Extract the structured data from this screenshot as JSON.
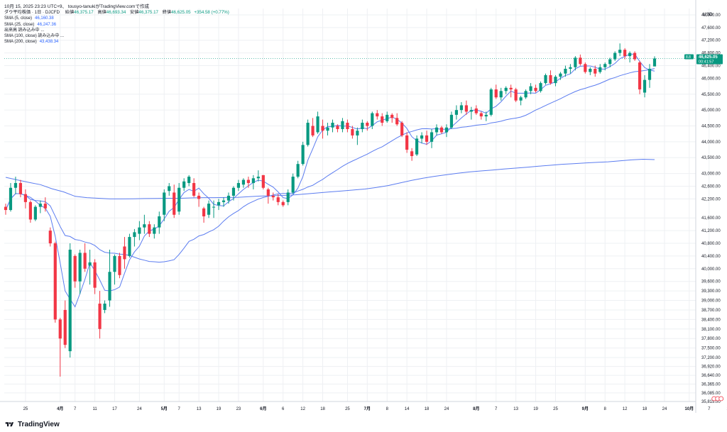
{
  "header": {
    "published": "10月 15, 2025 23:23 UTC+9、 tousyo-tanukiがTradingView.comで作成",
    "symbol_line": "ダウ平均株価 · 1日 · DJCFD",
    "ohlc": {
      "open_label": "始値",
      "open": "46,375.17",
      "high_label": "高値",
      "high": "46,693.34",
      "low_label": "安値",
      "low": "46,375.17",
      "close_label": "終値",
      "close": "46,625.05",
      "change": "+354.58 (+0.77%)"
    }
  },
  "indicators": [
    {
      "label": "SMA (5, close)",
      "value": "46,160.38",
      "color": "#2962ff"
    },
    {
      "label": "SMA (25, close)",
      "value": "46,247.36",
      "color": "#2962ff"
    },
    {
      "label": "出来高 読み込み中 ...",
      "value": "",
      "color": "#131722"
    },
    {
      "label": "SMA (100, close) 読み込み中 ...",
      "value": "",
      "color": "#131722"
    },
    {
      "label": "SMA (200, close)",
      "value": "43,438.34",
      "color": "#2962ff"
    }
  ],
  "colors": {
    "up": "#089981",
    "down": "#f23645",
    "sma": "#5b7cf0",
    "grid": "#eef0f3",
    "axis_text": "#131722",
    "last_price_bg": "#089981"
  },
  "footer": {
    "brand": "TradingView"
  },
  "chart_data": {
    "type": "candlestick",
    "title": "ダウ平均株価 · 1日 · DJCFD",
    "currency": "USD",
    "ylim": [
      35815,
      48200
    ],
    "y_ticks": [
      48000,
      47600,
      47200,
      46800,
      46400,
      46000,
      45500,
      45000,
      44500,
      44000,
      43500,
      43000,
      42600,
      42200,
      41600,
      41200,
      40800,
      40400,
      40000,
      39600,
      39300,
      39000,
      38700,
      38400,
      38100,
      37800,
      37500,
      37200,
      36920,
      36640,
      36365,
      36085,
      35815
    ],
    "y_tick_labels": [
      "48,000.00",
      "47,600.00",
      "47,200.00",
      "46,800.00",
      "46,400.00",
      "46,000.00",
      "45,500.00",
      "45,000.00",
      "44,500.00",
      "44,000.00",
      "43,500.00",
      "43,000.00",
      "42,600.00",
      "42,200.00",
      "41,600.00",
      "41,200.00",
      "40,800.00",
      "40,400.00",
      "40,000.00",
      "39,600.00",
      "39,300.00",
      "39,000.00",
      "38,700.00",
      "38,400.00",
      "38,100.00",
      "37,800.00",
      "37,500.00",
      "37,200.00",
      "36,920.00",
      "36,640.00",
      "36,365.00",
      "36,085.00",
      "35,815.00"
    ],
    "x_ticks": [
      {
        "label": "25",
        "idx": 4
      },
      {
        "label": "4月",
        "idx": 11,
        "bold": true
      },
      {
        "label": "7",
        "idx": 14
      },
      {
        "label": "11",
        "idx": 18
      },
      {
        "label": "17",
        "idx": 22
      },
      {
        "label": "24",
        "idx": 27
      },
      {
        "label": "5月",
        "idx": 32,
        "bold": true
      },
      {
        "label": "7",
        "idx": 35
      },
      {
        "label": "13",
        "idx": 39
      },
      {
        "label": "19",
        "idx": 43
      },
      {
        "label": "23",
        "idx": 47
      },
      {
        "label": "6月",
        "idx": 52,
        "bold": true
      },
      {
        "label": "6",
        "idx": 56
      },
      {
        "label": "12",
        "idx": 60
      },
      {
        "label": "18",
        "idx": 64
      },
      {
        "label": "25",
        "idx": 69
      },
      {
        "label": "7月",
        "idx": 73,
        "bold": true
      },
      {
        "label": "8",
        "idx": 77
      },
      {
        "label": "14",
        "idx": 81
      },
      {
        "label": "18",
        "idx": 85
      },
      {
        "label": "24",
        "idx": 89
      },
      {
        "label": "8月",
        "idx": 95,
        "bold": true
      },
      {
        "label": "7",
        "idx": 99
      },
      {
        "label": "13",
        "idx": 103
      },
      {
        "label": "19",
        "idx": 107
      },
      {
        "label": "25",
        "idx": 111
      },
      {
        "label": "9月",
        "idx": 117,
        "bold": true
      },
      {
        "label": "8",
        "idx": 121
      },
      {
        "label": "12",
        "idx": 125
      },
      {
        "label": "18",
        "idx": 129
      },
      {
        "label": "24",
        "idx": 133
      },
      {
        "label": "10月",
        "idx": 138,
        "bold": true
      },
      {
        "label": "7",
        "idx": 142
      },
      {
        "label": "13",
        "idx": 146
      },
      {
        "label": "17",
        "idx": 150
      },
      {
        "label": "23",
        "idx": 155
      }
    ],
    "candles": [
      [
        41950,
        42050,
        41700,
        41850
      ],
      [
        41850,
        42700,
        41800,
        42550
      ],
      [
        42550,
        42900,
        42350,
        42700
      ],
      [
        42700,
        42800,
        42250,
        42350
      ],
      [
        42350,
        42500,
        41900,
        42100
      ],
      [
        42100,
        42150,
        41450,
        41550
      ],
      [
        41550,
        42000,
        41500,
        41950
      ],
      [
        41950,
        42150,
        41750,
        42050
      ],
      [
        42050,
        42250,
        41800,
        41900
      ],
      [
        41200,
        41300,
        40700,
        40800
      ],
      [
        40800,
        40850,
        38300,
        38400
      ],
      [
        38400,
        38450,
        36600,
        37800
      ],
      [
        38700,
        39000,
        37500,
        37600
      ],
      [
        37400,
        40800,
        37200,
        40600
      ],
      [
        40400,
        40450,
        39400,
        39600
      ],
      [
        39600,
        40600,
        39200,
        40500
      ],
      [
        40500,
        40800,
        39900,
        40000
      ],
      [
        40100,
        40600,
        39500,
        40200
      ],
      [
        40200,
        40300,
        39200,
        39400
      ],
      [
        38900,
        39300,
        37800,
        38100
      ],
      [
        38700,
        39000,
        38600,
        38900
      ],
      [
        39000,
        40600,
        38800,
        39900
      ],
      [
        39900,
        40450,
        39500,
        40400
      ],
      [
        40400,
        40500,
        39700,
        39800
      ],
      [
        40700,
        41000,
        40000,
        40300
      ],
      [
        40400,
        41100,
        40350,
        41000
      ],
      [
        41000,
        41250,
        40700,
        41150
      ],
      [
        41100,
        41500,
        40900,
        41300
      ],
      [
        41300,
        41700,
        41100,
        41400
      ],
      [
        41400,
        41500,
        41000,
        41100
      ],
      [
        41100,
        41400,
        40950,
        41300
      ],
      [
        41300,
        41800,
        41100,
        41650
      ],
      [
        41700,
        42500,
        41500,
        42400
      ],
      [
        42450,
        42700,
        42300,
        42600
      ],
      [
        42400,
        42650,
        41600,
        41700
      ],
      [
        41800,
        42700,
        41700,
        42550
      ],
      [
        42550,
        42850,
        42450,
        42750
      ],
      [
        42700,
        42950,
        42600,
        42900
      ],
      [
        42700,
        42850,
        42250,
        42300
      ],
      [
        42300,
        42400,
        41950,
        42200
      ],
      [
        41900,
        41950,
        41450,
        41650
      ],
      [
        41700,
        42150,
        41600,
        42050
      ],
      [
        41950,
        42150,
        41600,
        41950
      ],
      [
        42000,
        42200,
        41850,
        42100
      ],
      [
        42100,
        42250,
        41950,
        42150
      ],
      [
        42150,
        42400,
        42050,
        42300
      ],
      [
        42300,
        42600,
        42150,
        42550
      ],
      [
        42550,
        42800,
        42450,
        42700
      ],
      [
        42650,
        42850,
        42550,
        42800
      ],
      [
        42800,
        42900,
        42550,
        42700
      ],
      [
        42700,
        42950,
        42500,
        42850
      ],
      [
        42850,
        43100,
        42750,
        42900
      ],
      [
        42950,
        42950,
        42500,
        42550
      ],
      [
        42500,
        42550,
        42050,
        42300
      ],
      [
        42300,
        42400,
        42150,
        42250
      ],
      [
        42250,
        42350,
        42000,
        42100
      ],
      [
        42100,
        42150,
        41950,
        42000
      ],
      [
        42100,
        42500,
        42000,
        42400
      ],
      [
        42400,
        43000,
        42350,
        42900
      ],
      [
        42900,
        43400,
        42850,
        43300
      ],
      [
        43300,
        44000,
        43250,
        43900
      ],
      [
        43900,
        44700,
        43850,
        44600
      ],
      [
        44500,
        44750,
        44150,
        44200
      ],
      [
        44300,
        44950,
        44250,
        44800
      ],
      [
        44500,
        44700,
        44100,
        44350
      ],
      [
        44350,
        44600,
        44200,
        44450
      ],
      [
        44450,
        44700,
        44300,
        44600
      ],
      [
        44500,
        44550,
        44300,
        44400
      ],
      [
        44400,
        44750,
        44300,
        44650
      ],
      [
        44600,
        44700,
        44300,
        44400
      ],
      [
        44400,
        44500,
        44100,
        44200
      ],
      [
        44200,
        44450,
        43900,
        44350
      ],
      [
        44400,
        44700,
        44300,
        44600
      ],
      [
        44600,
        44650,
        44350,
        44500
      ],
      [
        44500,
        44950,
        44400,
        44900
      ],
      [
        44900,
        45000,
        44700,
        44800
      ],
      [
        44800,
        44900,
        44500,
        44600
      ],
      [
        44650,
        44950,
        44600,
        44850
      ],
      [
        44850,
        44900,
        44600,
        44750
      ],
      [
        44750,
        44900,
        44500,
        44550
      ],
      [
        44600,
        44650,
        44150,
        44200
      ],
      [
        44200,
        44300,
        43650,
        43750
      ],
      [
        43700,
        43800,
        43400,
        43550
      ],
      [
        43600,
        44200,
        43550,
        44100
      ],
      [
        44100,
        44300,
        43950,
        44200
      ],
      [
        44200,
        44350,
        43900,
        44000
      ],
      [
        44000,
        44400,
        43800,
        44300
      ],
      [
        44300,
        44550,
        44200,
        44450
      ],
      [
        44450,
        44500,
        44250,
        44300
      ],
      [
        44300,
        44550,
        44150,
        44450
      ],
      [
        44450,
        44950,
        44400,
        44850
      ],
      [
        44850,
        45150,
        44700,
        45000
      ],
      [
        45000,
        45250,
        44900,
        45150
      ],
      [
        45150,
        45300,
        44850,
        44950
      ],
      [
        44950,
        45100,
        44700,
        45000
      ],
      [
        45050,
        45150,
        44850,
        44900
      ],
      [
        44900,
        44950,
        44700,
        44800
      ],
      [
        44800,
        44950,
        44650,
        44850
      ],
      [
        44850,
        45700,
        44800,
        45650
      ],
      [
        45650,
        45800,
        45350,
        45400
      ],
      [
        45400,
        45700,
        45300,
        45600
      ],
      [
        45600,
        45750,
        45500,
        45700
      ],
      [
        45700,
        45800,
        45400,
        45650
      ],
      [
        45650,
        45700,
        45250,
        45300
      ],
      [
        45300,
        45450,
        45150,
        45400
      ],
      [
        45400,
        45650,
        45350,
        45600
      ],
      [
        45600,
        45850,
        45500,
        45750
      ],
      [
        45700,
        45800,
        45550,
        45600
      ],
      [
        45600,
        45900,
        45550,
        45850
      ],
      [
        45850,
        46150,
        45800,
        46100
      ],
      [
        46100,
        46250,
        45800,
        45850
      ],
      [
        45850,
        46100,
        45750,
        46050
      ],
      [
        46050,
        46200,
        45950,
        46150
      ],
      [
        46150,
        46400,
        46050,
        46300
      ],
      [
        46300,
        46450,
        46150,
        46350
      ],
      [
        46350,
        46700,
        46250,
        46650
      ],
      [
        46650,
        46750,
        46400,
        46450
      ],
      [
        46450,
        46500,
        46150,
        46200
      ],
      [
        46200,
        46350,
        46100,
        46300
      ],
      [
        46300,
        46400,
        46050,
        46150
      ],
      [
        46200,
        46450,
        46150,
        46350
      ],
      [
        46350,
        46500,
        46250,
        46450
      ],
      [
        46450,
        46650,
        46350,
        46600
      ],
      [
        46600,
        46850,
        46550,
        46800
      ],
      [
        46800,
        47100,
        46700,
        46900
      ],
      [
        46900,
        46950,
        46600,
        46700
      ],
      [
        46700,
        46850,
        46500,
        46800
      ],
      [
        46800,
        46850,
        46550,
        46600
      ],
      [
        46500,
        46550,
        45500,
        45650
      ],
      [
        45550,
        46100,
        45400,
        45950
      ],
      [
        45950,
        46450,
        45700,
        46300
      ],
      [
        46375.17,
        46693.34,
        46375.17,
        46625.05
      ]
    ],
    "sma_lines": [
      {
        "name": "SMA (5, close)",
        "period": 5
      },
      {
        "name": "SMA (25, close)",
        "period": 25
      },
      {
        "name": "SMA (200, close)",
        "period": 200
      }
    ],
    "sma200_values": [
      42880,
      42800,
      42720,
      42650,
      42520,
      42420,
      42280,
      42240,
      42220,
      42200,
      42200,
      42205,
      42210,
      42215,
      42220,
      42220,
      42230,
      42240,
      42240,
      42245,
      42250,
      42270,
      42290,
      42300,
      42310,
      42330,
      42360,
      42390,
      42420,
      42450,
      42480,
      42510,
      42560,
      42620,
      42700,
      42780,
      42850,
      42910,
      42960,
      43010,
      43050,
      43080,
      43110,
      43140,
      43170,
      43200,
      43230,
      43260,
      43290,
      43310,
      43330,
      43350,
      43370,
      43400,
      43430,
      43450,
      43438.34
    ],
    "last_price": 46625.05,
    "last_price_label": "46,625.05",
    "last_price_timer": "00:41:57",
    "last_price_tag": "8.8"
  }
}
